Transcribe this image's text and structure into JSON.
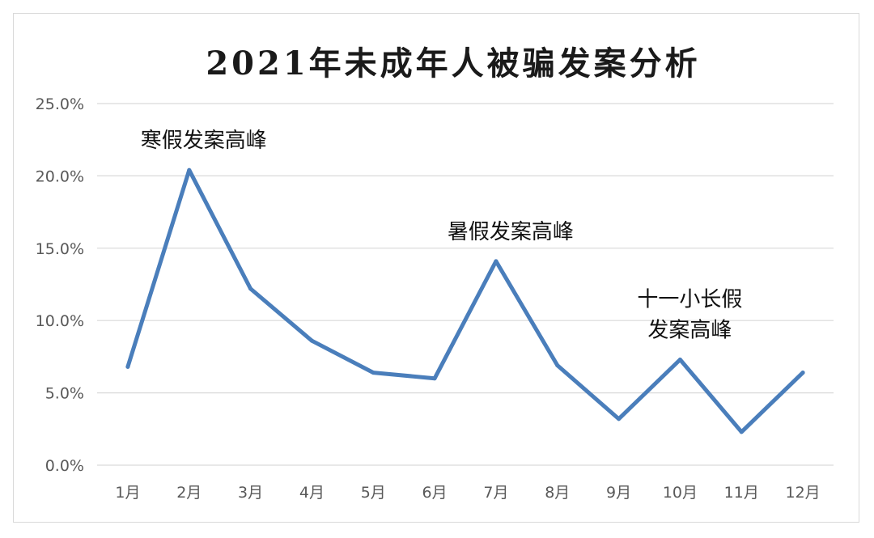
{
  "chart_data": {
    "type": "line",
    "title": "2021年未成年人被骗发案分析",
    "categories": [
      "1月",
      "2月",
      "3月",
      "4月",
      "5月",
      "6月",
      "7月",
      "8月",
      "9月",
      "10月",
      "11月",
      "12月"
    ],
    "series": [
      {
        "values": [
          6.8,
          20.4,
          12.2,
          8.6,
          6.4,
          6.0,
          14.1,
          6.9,
          3.2,
          7.3,
          2.3,
          6.4
        ]
      }
    ],
    "ylim": [
      0,
      25
    ],
    "yticks": [
      "0.0%",
      "5.0%",
      "10.0%",
      "15.0%",
      "20.0%",
      "25.0%"
    ],
    "grid": true,
    "line_color": "#4a7ebb",
    "annotations": [
      {
        "lines": [
          "寒假发案高峰"
        ],
        "category": "2月"
      },
      {
        "lines": [
          "暑假发案高峰"
        ],
        "category": "7月"
      },
      {
        "lines": [
          "十一小长假",
          "发案高峰"
        ],
        "category": "10月"
      }
    ]
  }
}
